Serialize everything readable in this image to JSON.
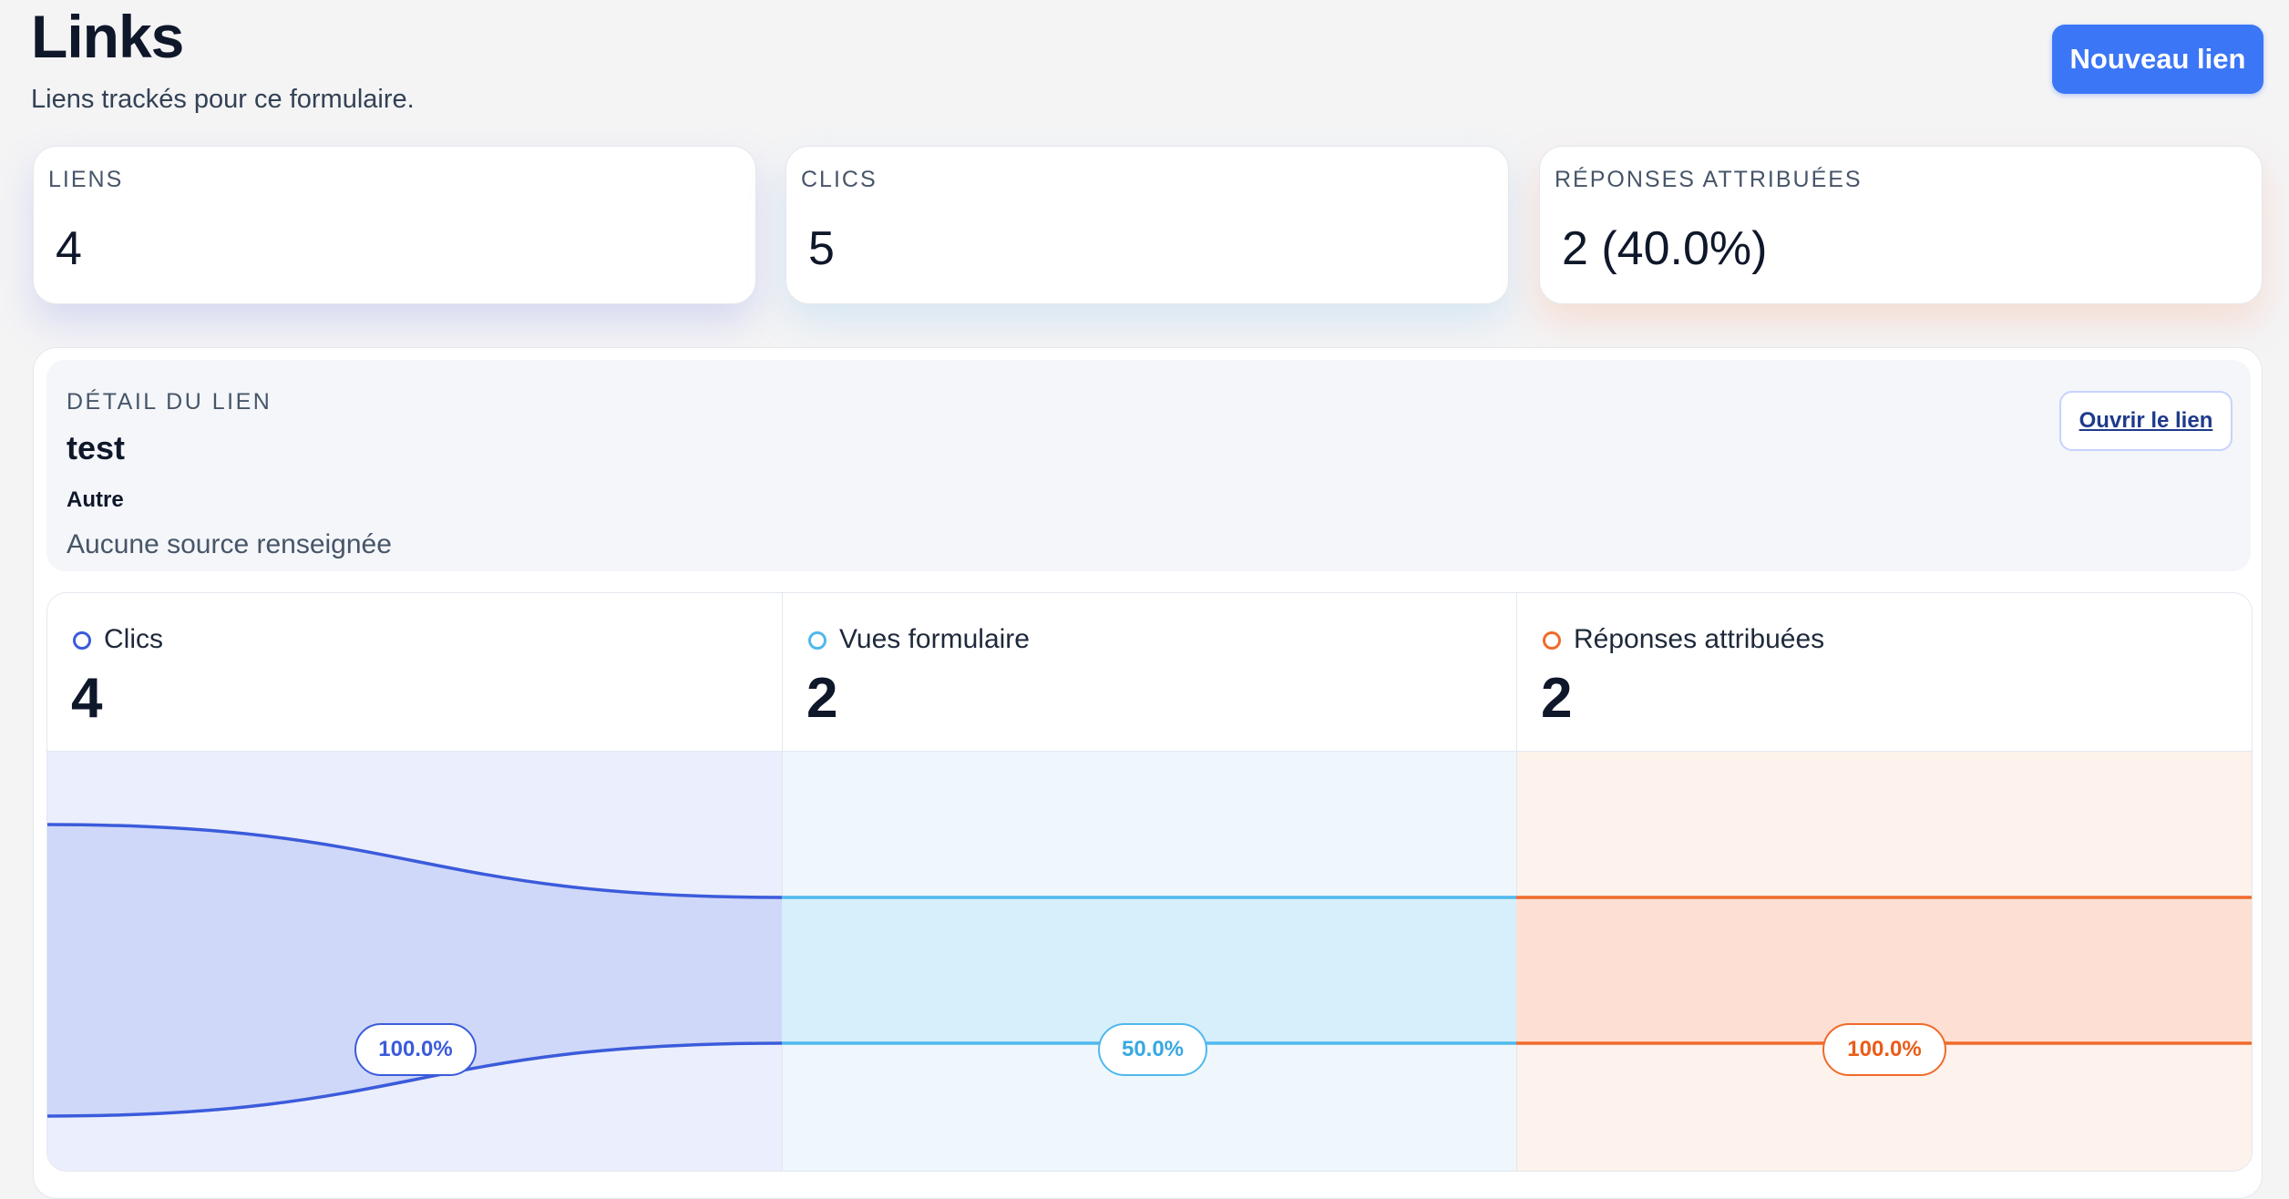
{
  "header": {
    "title": "Links",
    "subtitle": "Liens trackés pour ce formulaire.",
    "new_link_label": "Nouveau lien"
  },
  "stats": [
    {
      "label": "LIENS",
      "value": "4"
    },
    {
      "label": "CLICS",
      "value": "5"
    },
    {
      "label": "RÉPONSES ATTRIBUÉES",
      "value": "2 (40.0%)"
    }
  ],
  "detail": {
    "eyebrow": "DÉTAIL DU LIEN",
    "name": "test",
    "type": "Autre",
    "source": "Aucune source renseignée",
    "open_label": "Ouvrir le lien"
  },
  "funnel": {
    "steps": [
      {
        "label": "Clics",
        "value": "4",
        "rate": "100.0%",
        "color": "#3b5bdb"
      },
      {
        "label": "Vues formulaire",
        "value": "2",
        "rate": "50.0%",
        "color": "#4fb8ec"
      },
      {
        "label": "Réponses attribuées",
        "value": "2",
        "rate": "100.0%",
        "color": "#f06a2a"
      }
    ]
  },
  "chart_data": {
    "type": "area",
    "categories": [
      "Clics",
      "Vues formulaire",
      "Réponses attribuées"
    ],
    "values": [
      4,
      2,
      2
    ],
    "rates": [
      "100.0%",
      "50.0%",
      "100.0%"
    ],
    "title": "",
    "xlabel": "",
    "ylabel": ""
  }
}
